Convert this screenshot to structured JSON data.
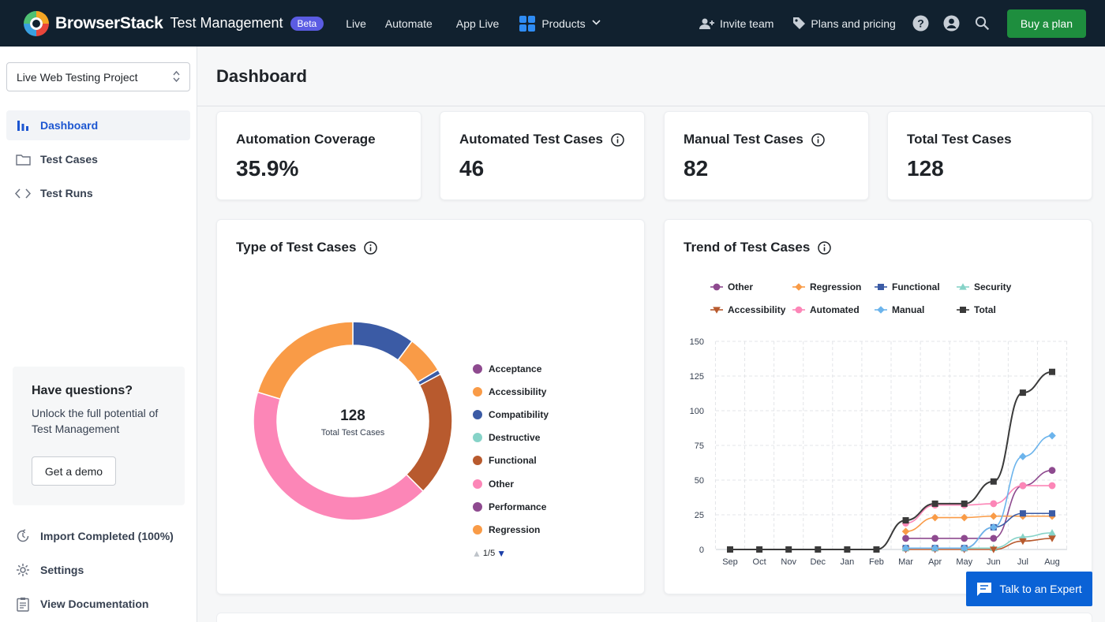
{
  "nav": {
    "brand": "BrowserStack",
    "product": "Test Management",
    "beta": "Beta",
    "links": [
      "Live",
      "Automate",
      "App Live"
    ],
    "products": "Products",
    "invite": "Invite team",
    "plans": "Plans and pricing",
    "buy": "Buy a plan"
  },
  "sidebar": {
    "project": "Live Web Testing Project",
    "items": [
      {
        "label": "Dashboard",
        "icon": "bar-chart-icon"
      },
      {
        "label": "Test Cases",
        "icon": "folder-icon"
      },
      {
        "label": "Test Runs",
        "icon": "code-icon"
      }
    ],
    "help": {
      "title": "Have questions?",
      "text": "Unlock the full potential of Test Management",
      "button": "Get a demo"
    },
    "bottom": [
      {
        "label": "Import Completed (100%)",
        "icon": "refresh-icon"
      },
      {
        "label": "Settings",
        "icon": "gear-icon"
      },
      {
        "label": "View Documentation",
        "icon": "document-icon"
      }
    ]
  },
  "page": {
    "title": "Dashboard"
  },
  "stats": [
    {
      "label": "Automation Coverage",
      "value": "35.9%",
      "info": false
    },
    {
      "label": "Automated Test Cases",
      "value": "46",
      "info": true
    },
    {
      "label": "Manual Test Cases",
      "value": "82",
      "info": true
    },
    {
      "label": "Total Test Cases",
      "value": "128",
      "info": false
    }
  ],
  "type_card": {
    "title": "Type of Test Cases",
    "center_value": "128",
    "center_label": "Total Test Cases",
    "pager": "1/5"
  },
  "trend_card": {
    "title": "Trend of Test Cases"
  },
  "expert": "Talk to an Expert",
  "chart_data": [
    {
      "type": "pie",
      "title": "Type of Test Cases",
      "categories": [
        "Acceptance",
        "Accessibility",
        "Compatibility",
        "Destructive",
        "Functional",
        "Other",
        "Performance",
        "Regression"
      ],
      "legend_colors": [
        "#8e4a8f",
        "#f99b47",
        "#3b5ba5",
        "#86d3c8",
        "#b85a2e",
        "#fc86b7",
        "#8e4a8f",
        "#f99b47"
      ],
      "slices": [
        {
          "name": "Compatibility",
          "value": 13,
          "color": "#3b5ba5"
        },
        {
          "name": "Regression",
          "value": 8,
          "color": "#f99b47"
        },
        {
          "name": "Compatibility",
          "value": 1,
          "color": "#3b5ba5"
        },
        {
          "name": "Functional",
          "value": 26,
          "color": "#b85a2e"
        },
        {
          "name": "Other",
          "value": 54,
          "color": "#fc86b7"
        },
        {
          "name": "Regression",
          "value": 26,
          "color": "#f99b47"
        }
      ],
      "total": 128
    },
    {
      "type": "line",
      "title": "Trend of Test Cases",
      "categories": [
        "Sep",
        "Oct",
        "Nov",
        "Dec",
        "Jan",
        "Feb",
        "Mar",
        "Apr",
        "May",
        "Jun",
        "Jul",
        "Aug"
      ],
      "ylim": [
        0,
        150
      ],
      "yticks": [
        0,
        25,
        50,
        75,
        100,
        125,
        150
      ],
      "grid": true,
      "legend_position": "top",
      "series": [
        {
          "name": "Other",
          "color": "#8e4a8f",
          "marker": "circle",
          "start": 6,
          "values": [
            0,
            0,
            0,
            0,
            0,
            0,
            8,
            8,
            8,
            8,
            46,
            57
          ]
        },
        {
          "name": "Regression",
          "color": "#f99b47",
          "marker": "diamond",
          "start": 6,
          "values": [
            0,
            0,
            0,
            0,
            0,
            0,
            13,
            23,
            23,
            24,
            24,
            24
          ]
        },
        {
          "name": "Functional",
          "color": "#3b5ba5",
          "marker": "square",
          "start": 6,
          "values": [
            0,
            0,
            0,
            0,
            0,
            0,
            1,
            1,
            1,
            16,
            26,
            26
          ]
        },
        {
          "name": "Security",
          "color": "#86d3c8",
          "marker": "triangle",
          "start": 6,
          "values": [
            0,
            0,
            0,
            0,
            0,
            0,
            1,
            1,
            1,
            1,
            9,
            12
          ]
        },
        {
          "name": "Accessibility",
          "color": "#b85a2e",
          "marker": "triangle-down",
          "start": 6,
          "values": [
            0,
            0,
            0,
            0,
            0,
            0,
            0,
            0,
            0,
            0,
            6,
            8
          ]
        },
        {
          "name": "Automated",
          "color": "#fc86b7",
          "marker": "circle",
          "start": 6,
          "values": [
            0,
            0,
            0,
            0,
            0,
            0,
            19,
            32,
            32,
            33,
            46,
            46
          ]
        },
        {
          "name": "Manual",
          "color": "#6cb4ec",
          "marker": "diamond",
          "start": 6,
          "values": [
            0,
            0,
            0,
            0,
            0,
            0,
            1,
            1,
            1,
            16,
            67,
            82
          ]
        },
        {
          "name": "Total",
          "color": "#3a3a3a",
          "marker": "square",
          "start": 0,
          "values": [
            0,
            0,
            0,
            0,
            0,
            0,
            21,
            33,
            33,
            49,
            113,
            128
          ]
        }
      ]
    }
  ]
}
